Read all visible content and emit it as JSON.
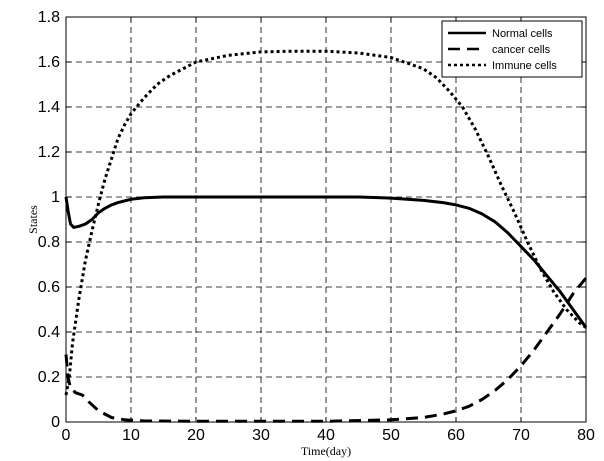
{
  "chart_data": {
    "type": "line",
    "title": "",
    "xlabel": "Time(day)",
    "ylabel": "States",
    "xlim": [
      0,
      80
    ],
    "ylim": [
      0,
      1.8
    ],
    "x_ticks": [
      "0",
      "10",
      "20",
      "30",
      "40",
      "50",
      "60",
      "70",
      "80"
    ],
    "y_ticks": [
      "0",
      "0.2",
      "0.4",
      "0.6",
      "0.8",
      "1",
      "1.2",
      "1.4",
      "1.6",
      "1.8"
    ],
    "grid": true,
    "legend_position": "top-right",
    "series": [
      {
        "name": "Normal cells",
        "style": "solid",
        "color": "#000000",
        "points": [
          [
            0,
            1.0
          ],
          [
            0.3,
            0.94
          ],
          [
            0.7,
            0.88
          ],
          [
            1.2,
            0.865
          ],
          [
            2,
            0.87
          ],
          [
            3,
            0.88
          ],
          [
            4,
            0.9
          ],
          [
            5,
            0.93
          ],
          [
            6,
            0.95
          ],
          [
            7,
            0.965
          ],
          [
            8,
            0.975
          ],
          [
            10,
            0.99
          ],
          [
            12,
            0.997
          ],
          [
            15,
            1.0
          ],
          [
            20,
            1.0
          ],
          [
            30,
            1.0
          ],
          [
            40,
            1.0
          ],
          [
            45,
            1.0
          ],
          [
            50,
            0.995
          ],
          [
            55,
            0.985
          ],
          [
            58,
            0.975
          ],
          [
            60,
            0.965
          ],
          [
            62,
            0.95
          ],
          [
            64,
            0.925
          ],
          [
            66,
            0.89
          ],
          [
            68,
            0.84
          ],
          [
            70,
            0.78
          ],
          [
            72,
            0.72
          ],
          [
            74,
            0.65
          ],
          [
            76,
            0.58
          ],
          [
            78,
            0.5
          ],
          [
            80,
            0.42
          ]
        ]
      },
      {
        "name": "cancer cells",
        "style": "dashed",
        "color": "#000000",
        "points": [
          [
            0,
            0.3
          ],
          [
            0.3,
            0.2
          ],
          [
            0.7,
            0.15
          ],
          [
            1.5,
            0.13
          ],
          [
            2.5,
            0.12
          ],
          [
            3.5,
            0.09
          ],
          [
            5,
            0.05
          ],
          [
            7,
            0.02
          ],
          [
            9,
            0.01
          ],
          [
            12,
            0.005
          ],
          [
            20,
            0.003
          ],
          [
            30,
            0.003
          ],
          [
            40,
            0.003
          ],
          [
            50,
            0.01
          ],
          [
            55,
            0.02
          ],
          [
            58,
            0.035
          ],
          [
            60,
            0.05
          ],
          [
            62,
            0.07
          ],
          [
            64,
            0.1
          ],
          [
            66,
            0.14
          ],
          [
            68,
            0.19
          ],
          [
            70,
            0.25
          ],
          [
            72,
            0.32
          ],
          [
            74,
            0.4
          ],
          [
            76,
            0.48
          ],
          [
            78,
            0.57
          ],
          [
            80,
            0.64
          ]
        ]
      },
      {
        "name": "Immune cells",
        "style": "dotted",
        "color": "#000000",
        "points": [
          [
            0,
            0.12
          ],
          [
            0.5,
            0.2
          ],
          [
            1,
            0.35
          ],
          [
            2,
            0.55
          ],
          [
            3,
            0.72
          ],
          [
            4,
            0.85
          ],
          [
            5,
            0.97
          ],
          [
            6,
            1.08
          ],
          [
            7,
            1.17
          ],
          [
            8,
            1.26
          ],
          [
            9,
            1.32
          ],
          [
            10,
            1.37
          ],
          [
            12,
            1.44
          ],
          [
            14,
            1.5
          ],
          [
            16,
            1.54
          ],
          [
            18,
            1.57
          ],
          [
            20,
            1.6
          ],
          [
            25,
            1.63
          ],
          [
            30,
            1.645
          ],
          [
            35,
            1.648
          ],
          [
            40,
            1.648
          ],
          [
            45,
            1.64
          ],
          [
            50,
            1.62
          ],
          [
            52,
            1.6
          ],
          [
            55,
            1.57
          ],
          [
            57,
            1.53
          ],
          [
            59,
            1.47
          ],
          [
            61,
            1.4
          ],
          [
            63,
            1.3
          ],
          [
            65,
            1.18
          ],
          [
            67,
            1.05
          ],
          [
            69,
            0.93
          ],
          [
            71,
            0.8
          ],
          [
            73,
            0.68
          ],
          [
            75,
            0.58
          ],
          [
            77,
            0.5
          ],
          [
            79,
            0.44
          ],
          [
            80,
            0.42
          ]
        ]
      }
    ]
  }
}
